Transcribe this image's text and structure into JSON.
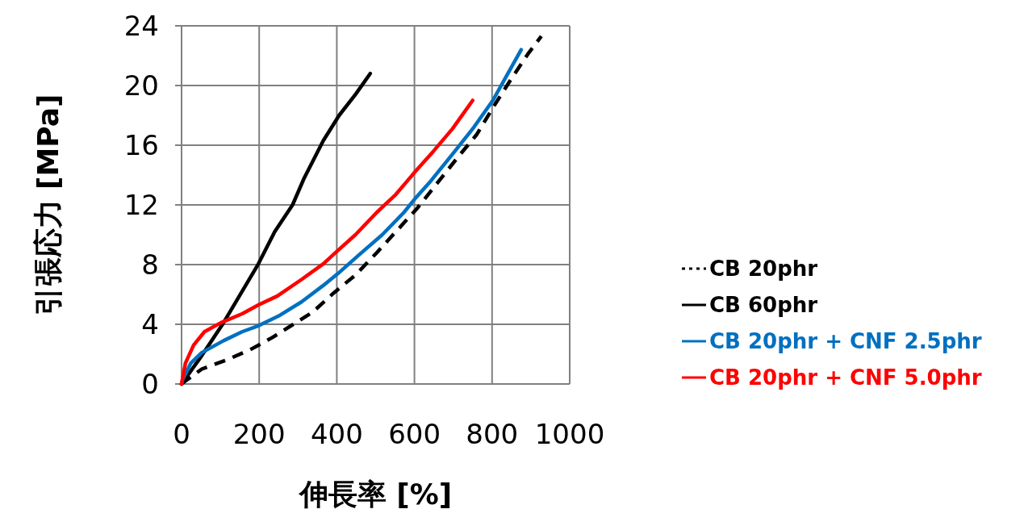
{
  "chart_data": {
    "type": "line",
    "xlabel": "伸長率 [%]",
    "ylabel": "引張応力 [MPa]",
    "xlim": [
      0,
      1000
    ],
    "xticks": [
      0,
      200,
      400,
      600,
      800,
      1000
    ],
    "ylim": [
      0,
      24
    ],
    "yticks": [
      0,
      4,
      8,
      12,
      16,
      20,
      24
    ],
    "grid": true,
    "legend": "right",
    "series": [
      {
        "name": "CB 20phr",
        "color": "#000000",
        "line_style": "dashed",
        "x": [
          0,
          10,
          52,
          115,
          177,
          233,
          288,
          337,
          392,
          448,
          503,
          559,
          608,
          663,
          712,
          760,
          809,
          851,
          892,
          927
        ],
        "values": [
          0,
          0.2,
          1.0,
          1.6,
          2.3,
          3.1,
          4.0,
          4.8,
          6.1,
          7.3,
          8.8,
          10.4,
          11.8,
          13.6,
          15.2,
          16.7,
          18.8,
          20.5,
          22.1,
          23.3
        ]
      },
      {
        "name": "CB 60phr",
        "color": "#000000",
        "line_style": "solid",
        "x": [
          0,
          52,
          108,
          149,
          198,
          240,
          286,
          316,
          365,
          406,
          448,
          486
        ],
        "values": [
          0,
          1.9,
          4.1,
          5.9,
          8.05,
          10.2,
          12.0,
          13.8,
          16.3,
          18.0,
          19.4,
          20.8
        ]
      },
      {
        "name": "CB 20phr + CNF 2.5phr",
        "color": "#0070c0",
        "line_style": "solid",
        "x": [
          0,
          3,
          24,
          52,
          108,
          156,
          198,
          253,
          309,
          365,
          403,
          455,
          517,
          573,
          601,
          642,
          698,
          753,
          802,
          875
        ],
        "values": [
          0,
          0.3,
          1.4,
          2.1,
          2.9,
          3.5,
          3.9,
          4.6,
          5.5,
          6.6,
          7.4,
          8.6,
          10.0,
          11.5,
          12.4,
          13.6,
          15.4,
          17.2,
          19.0,
          22.4
        ]
      },
      {
        "name": "CB 20phr + CNF 5.0phr",
        "color": "#ff0000",
        "line_style": "solid",
        "x": [
          0,
          10,
          31,
          59,
          101,
          156,
          198,
          247,
          309,
          365,
          403,
          448,
          503,
          552,
          601,
          649,
          698,
          750
        ],
        "values": [
          0,
          1.4,
          2.6,
          3.5,
          4.1,
          4.7,
          5.3,
          5.9,
          7.0,
          8.05,
          8.95,
          10.0,
          11.5,
          12.7,
          14.2,
          15.6,
          17.1,
          19.0
        ]
      }
    ]
  }
}
